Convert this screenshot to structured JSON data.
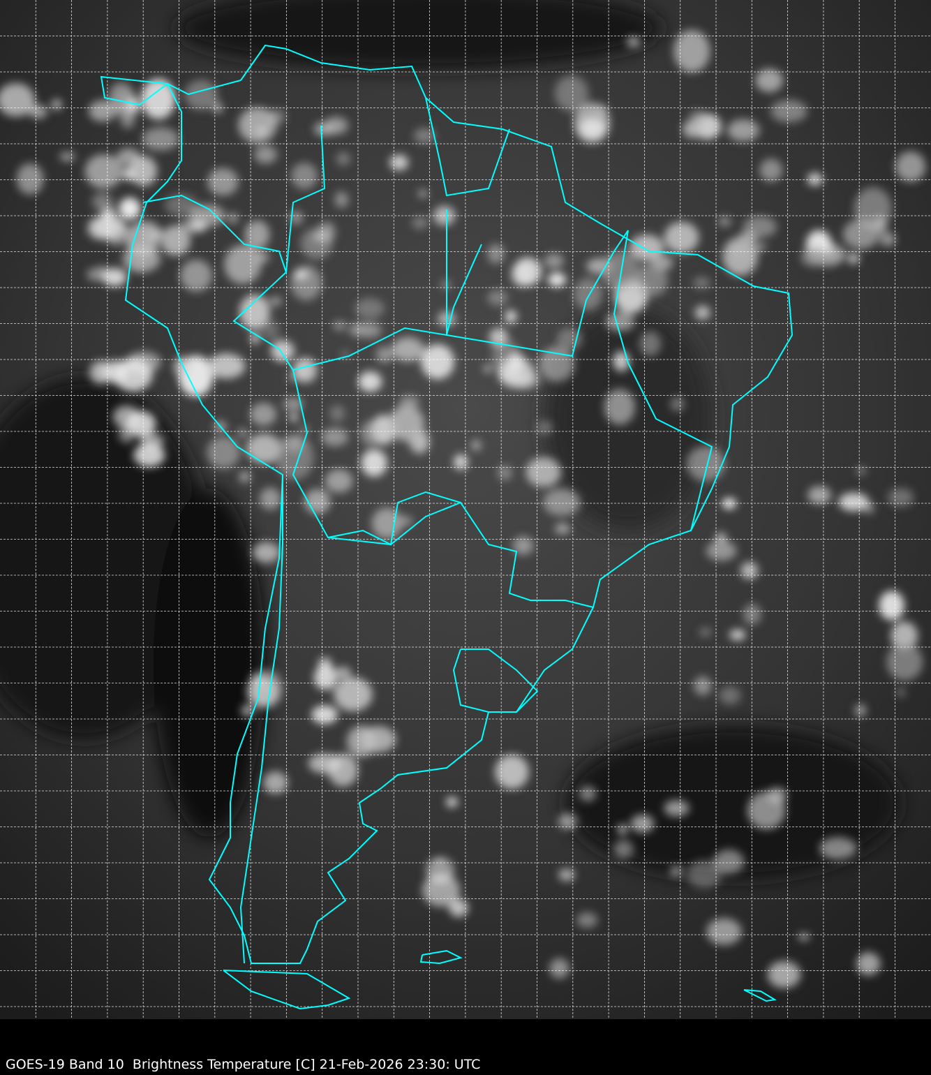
{
  "caption": "GOES-19 Band 10  Brightness Temperature [C] 21-Feb-2026 23:30: UTC",
  "map": {
    "region": "South America",
    "background": "grayscale infrared satellite imagery",
    "coastline_color": "#00FFFF",
    "grid_color": "#FFFFFF",
    "grid_style": "dashed"
  }
}
